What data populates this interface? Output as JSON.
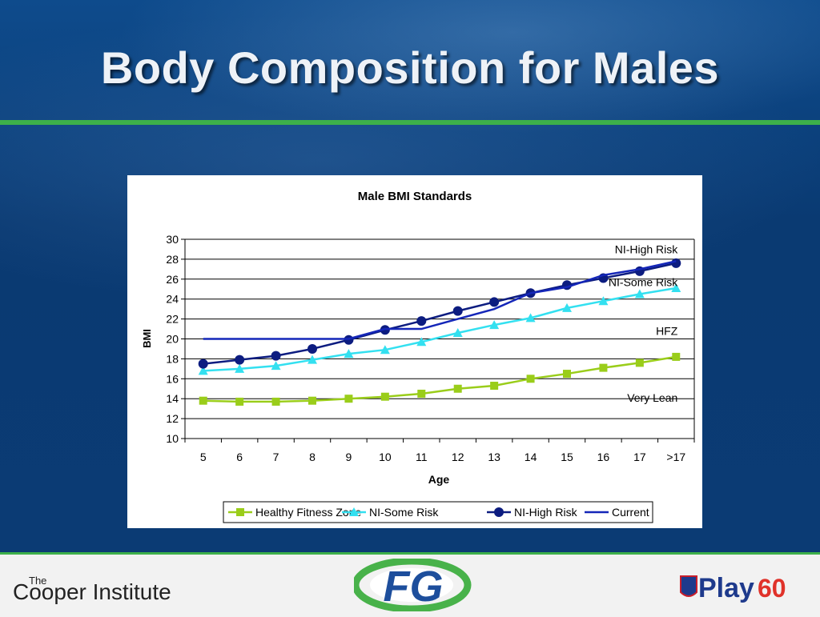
{
  "slide": {
    "title": "Body Composition for Males"
  },
  "chart_data": {
    "type": "line",
    "title": "Male BMI Standards",
    "xlabel": "Age",
    "ylabel": "BMI",
    "categories": [
      "5",
      "6",
      "7",
      "8",
      "9",
      "10",
      "11",
      "12",
      "13",
      "14",
      "15",
      "16",
      "17",
      ">17"
    ],
    "ylim": [
      10,
      30
    ],
    "yticks": [
      10,
      12,
      14,
      16,
      18,
      20,
      22,
      24,
      26,
      28,
      30
    ],
    "grid": true,
    "legend_position": "bottom",
    "series": [
      {
        "name": "Healthy Fitness Zone",
        "color": "#9acd1a",
        "marker": "square",
        "values": [
          13.8,
          13.7,
          13.7,
          13.8,
          14.0,
          14.2,
          14.5,
          15.0,
          15.3,
          16.0,
          16.5,
          17.1,
          17.6,
          18.2
        ]
      },
      {
        "name": "NI-Some Risk",
        "color": "#33e0f0",
        "marker": "triangle",
        "values": [
          16.8,
          17.0,
          17.3,
          17.9,
          18.5,
          18.9,
          19.7,
          20.6,
          21.4,
          22.1,
          23.1,
          23.8,
          24.5,
          25.1
        ]
      },
      {
        "name": "NI-High Risk",
        "color": "#0c1c80",
        "marker": "circle",
        "values": [
          17.5,
          17.9,
          18.3,
          19.0,
          19.9,
          20.9,
          21.8,
          22.8,
          23.7,
          24.6,
          25.4,
          26.1,
          26.8,
          27.6
        ]
      },
      {
        "name": "Current",
        "color": "#1426b8",
        "marker": "none",
        "values": [
          20.0,
          20.0,
          20.0,
          20.0,
          20.0,
          21.0,
          21.0,
          22.0,
          23.0,
          24.6,
          25.2,
          26.4,
          27.0,
          27.8
        ]
      }
    ],
    "annotations": [
      {
        "text": "NI-High Risk",
        "x": ">17",
        "y": 29.0
      },
      {
        "text": "NI-Some Risk",
        "x": ">17",
        "y": 25.7
      },
      {
        "text": "HFZ",
        "x": ">17",
        "y": 20.8
      },
      {
        "text": "Very Lean",
        "x": ">17",
        "y": 14.1
      }
    ]
  },
  "footer": {
    "cooper_the": "The",
    "cooper_name": "Cooper Institute",
    "fg_text": "FG",
    "play_text": "Play",
    "play_num": "60"
  },
  "colors": {
    "green_accent": "#3db04a",
    "background_blue": "#0d3f77"
  }
}
